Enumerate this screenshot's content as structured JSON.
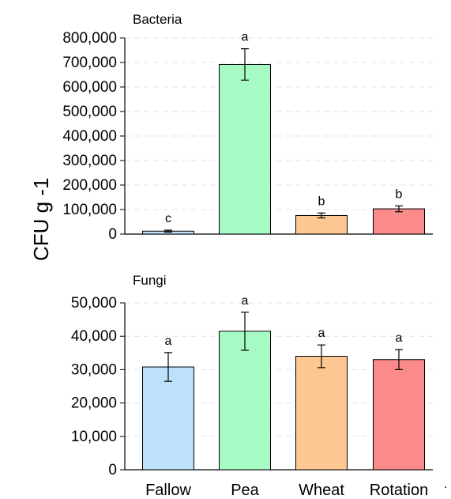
{
  "y_axis_label": "CFU g -1",
  "trailing_mark": ".",
  "chart_data": [
    {
      "type": "bar",
      "title": "Bacteria",
      "xlabel": "",
      "ylabel": "CFU g -1",
      "ylim": [
        0,
        800000
      ],
      "yticks": [
        0,
        100000,
        200000,
        300000,
        400000,
        500000,
        600000,
        700000,
        800000
      ],
      "ytick_labels": [
        "0",
        "100,000",
        "200,000",
        "300,000",
        "400,000",
        "500,000",
        "600,000",
        "700,000",
        "800,000"
      ],
      "grid": true,
      "categories": [
        "Fallow",
        "Pea",
        "Wheat",
        "Rotation"
      ],
      "values": [
        12000,
        692000,
        76000,
        103000
      ],
      "errors": [
        4000,
        64000,
        10000,
        12000
      ],
      "letters": [
        "c",
        "a",
        "b",
        "b"
      ],
      "colors": [
        "#bde0fb",
        "#a6fbc4",
        "#fdc792",
        "#fb8a8a"
      ]
    },
    {
      "type": "bar",
      "title": "Fungi",
      "xlabel": "",
      "ylabel": "CFU g -1",
      "ylim": [
        0,
        50000
      ],
      "yticks": [
        0,
        10000,
        20000,
        30000,
        40000,
        50000
      ],
      "ytick_labels": [
        "0",
        "10,000",
        "20,000",
        "30,000",
        "40,000",
        "50,000"
      ],
      "grid": true,
      "categories": [
        "Fallow",
        "Pea",
        "Wheat",
        "Rotation"
      ],
      "values": [
        30800,
        41500,
        34000,
        33000
      ],
      "errors": [
        4300,
        5700,
        3400,
        3000
      ],
      "letters": [
        "a",
        "a",
        "a",
        "a"
      ],
      "colors": [
        "#bde0fb",
        "#a6fbc4",
        "#fdc792",
        "#fb8a8a"
      ]
    }
  ]
}
